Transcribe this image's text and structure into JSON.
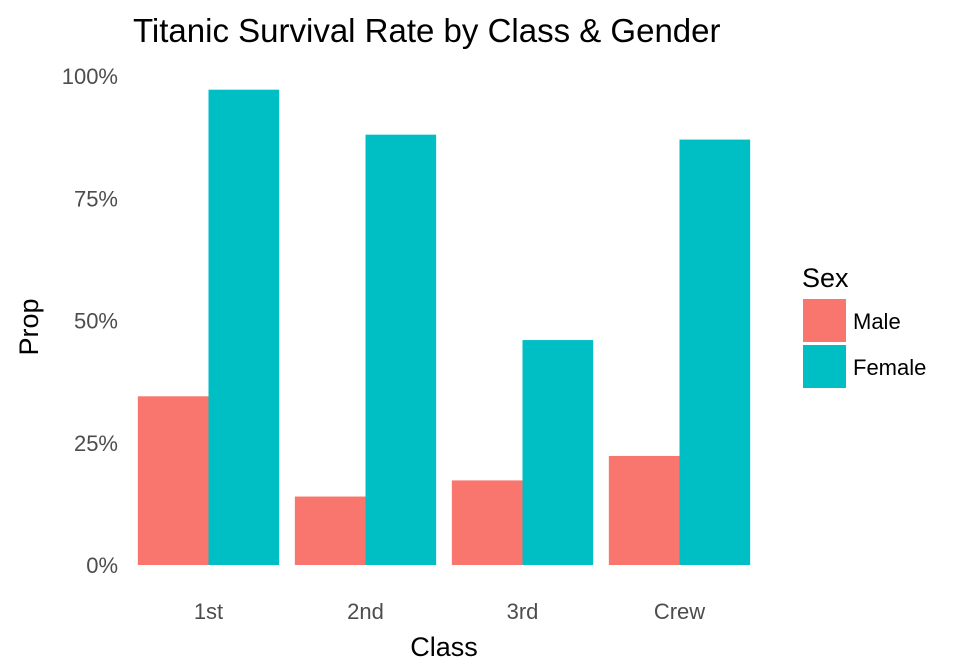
{
  "chart_data": {
    "type": "bar",
    "title": "Titanic Survival Rate by Class & Gender",
    "xlabel": "Class",
    "ylabel": "Prop",
    "categories": [
      "1st",
      "2nd",
      "3rd",
      "Crew"
    ],
    "series": [
      {
        "name": "Male",
        "values": [
          0.345,
          0.14,
          0.173,
          0.223
        ],
        "color": "#F8766D"
      },
      {
        "name": "Female",
        "values": [
          0.972,
          0.88,
          0.46,
          0.87
        ],
        "color": "#00BFC4"
      }
    ],
    "ylim": [
      0,
      1
    ],
    "yticks": [
      0,
      0.25,
      0.5,
      0.75,
      1
    ],
    "ytick_labels": [
      "0%",
      "25%",
      "50%",
      "75%",
      "100%"
    ],
    "grid": false,
    "legend": {
      "title": "Sex",
      "position": "right"
    }
  }
}
